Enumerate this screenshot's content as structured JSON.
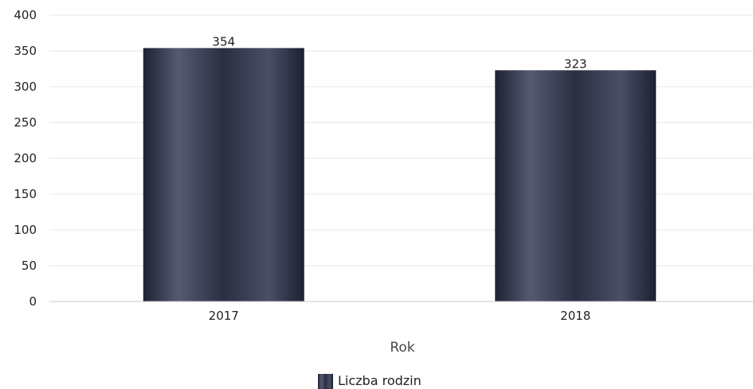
{
  "chart_data": {
    "type": "bar",
    "categories": [
      "2017",
      "2018"
    ],
    "series": [
      {
        "name": "Liczba rodzin",
        "values": [
          354,
          323
        ]
      }
    ],
    "xlabel": "Rok",
    "ylabel": "",
    "ylim": [
      0,
      400
    ],
    "yticks": [
      0,
      50,
      100,
      150,
      200,
      250,
      300,
      350,
      400
    ],
    "grid": true,
    "legend_position": "bottom",
    "bar_color": "#3a3f55",
    "grid_color": "#e6e6ee"
  }
}
